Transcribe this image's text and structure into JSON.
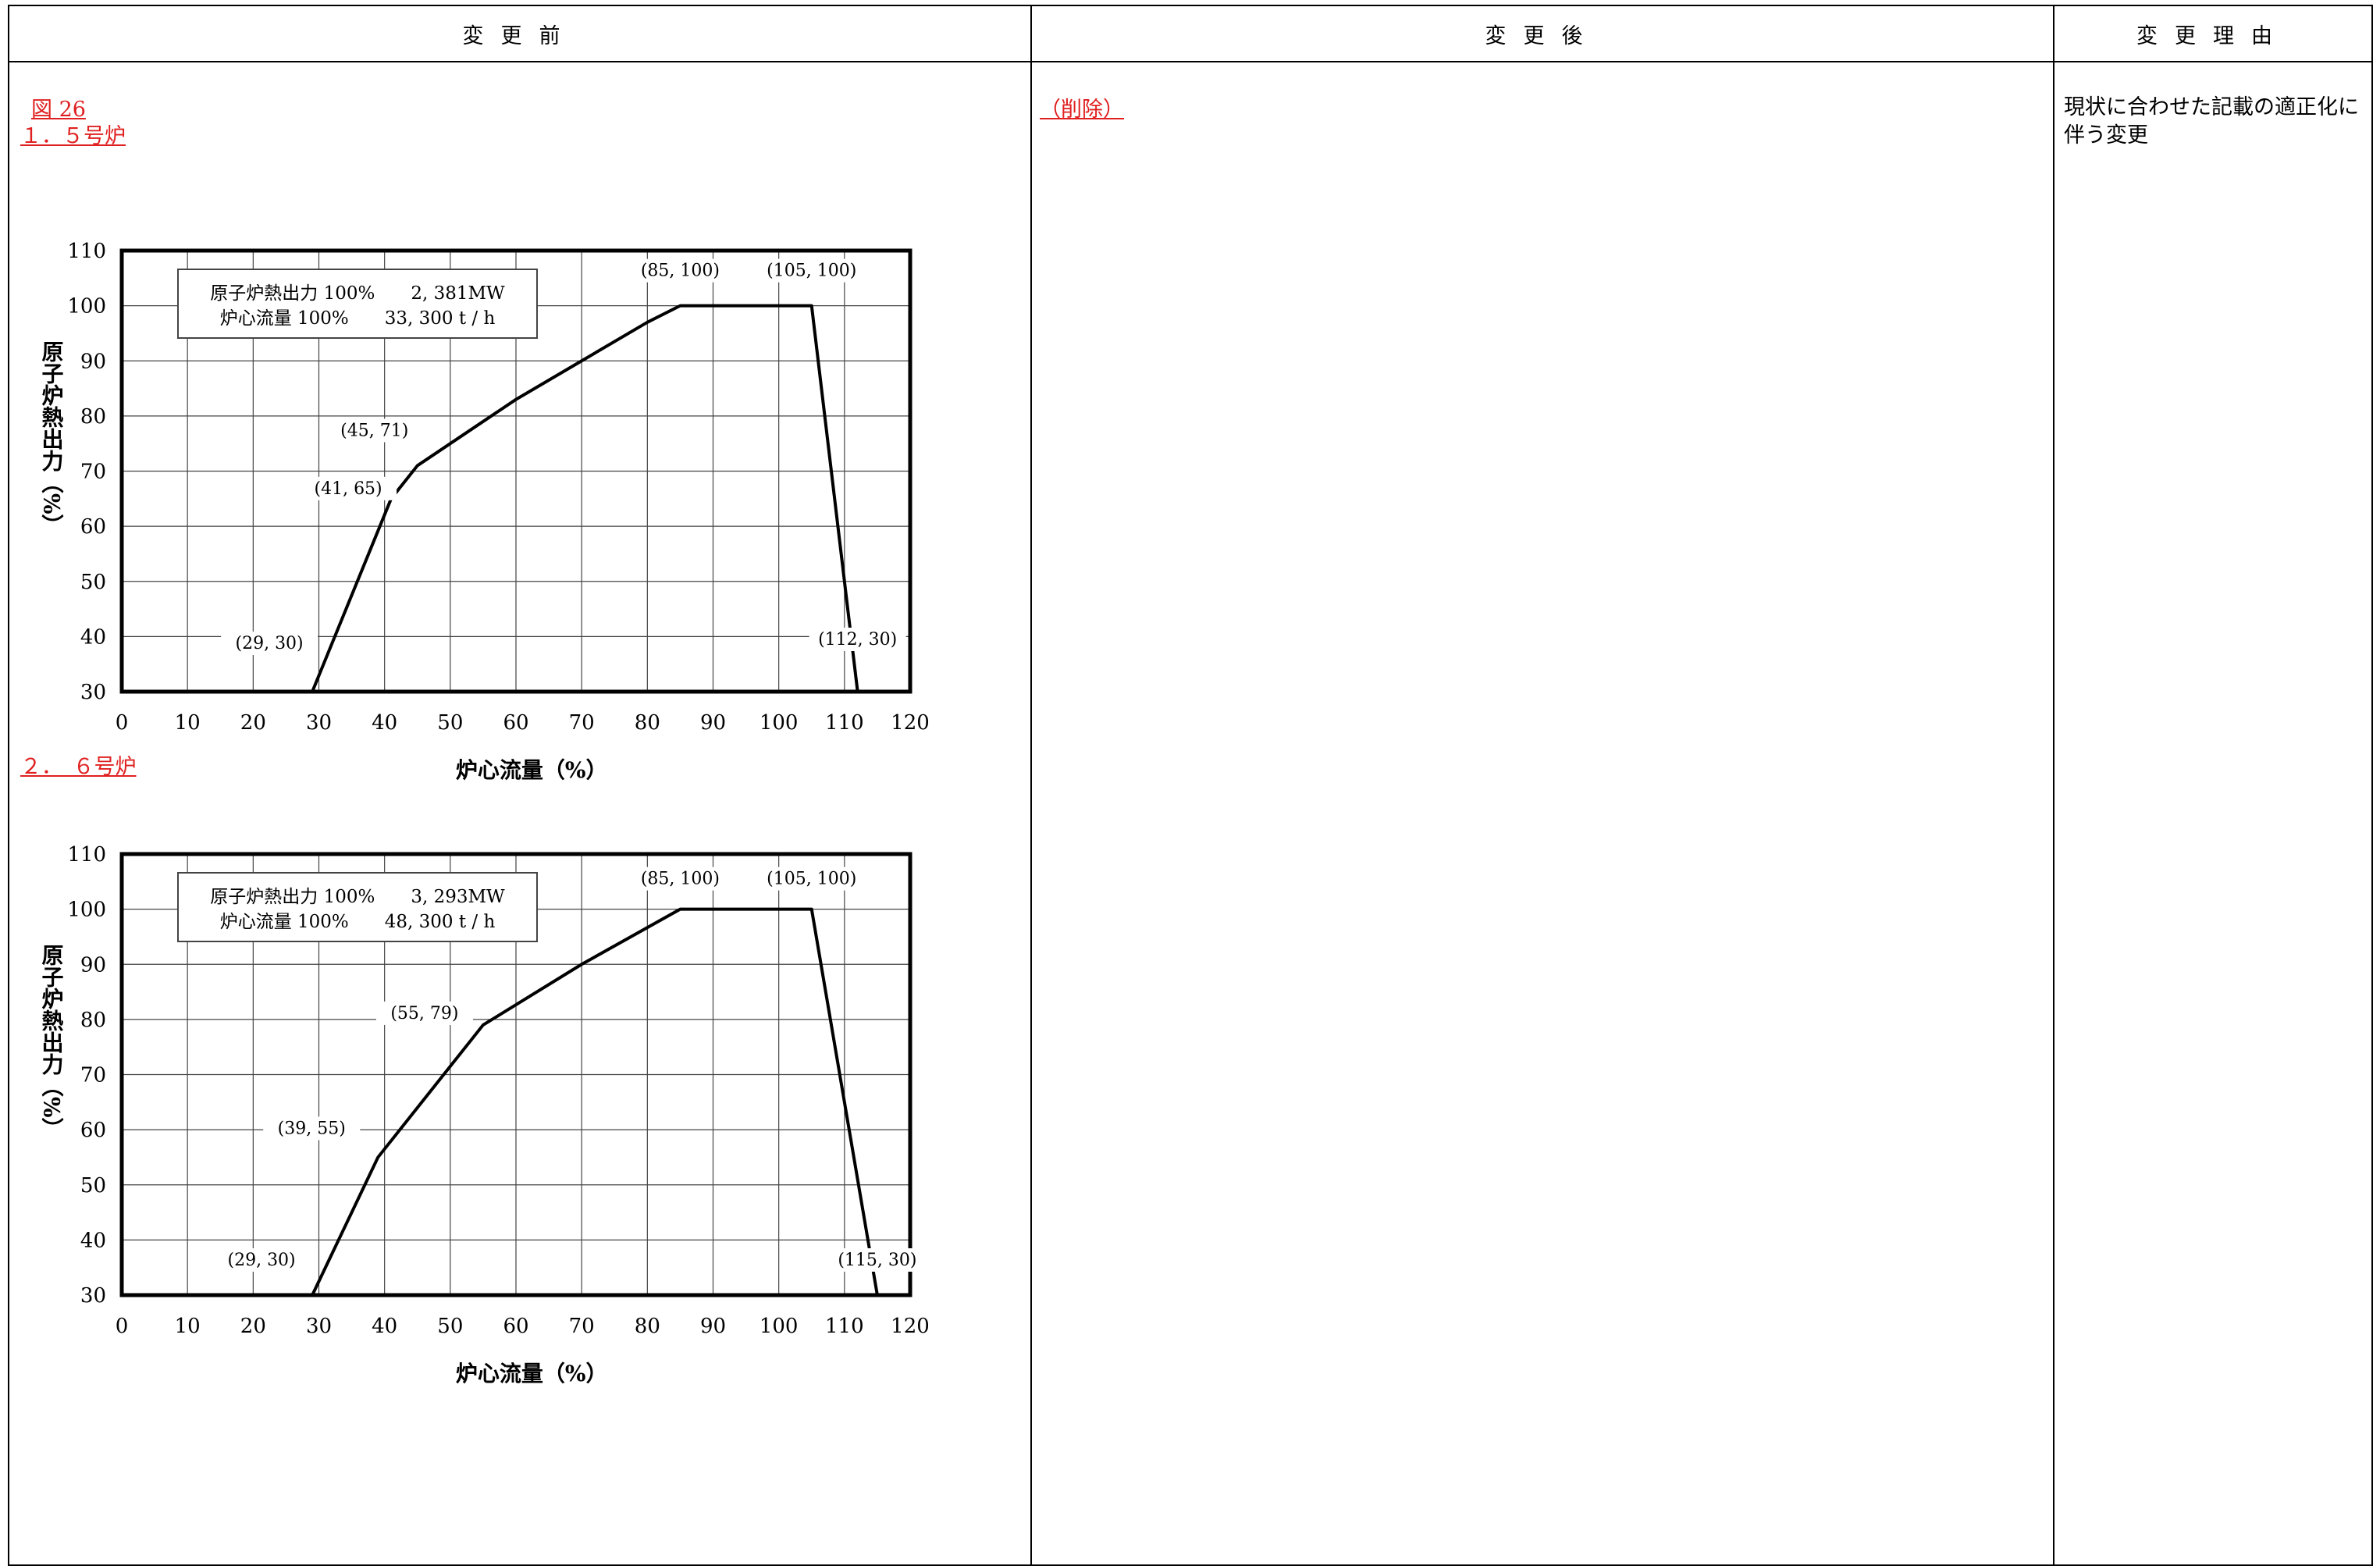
{
  "headers": {
    "before": "変更前",
    "after": "変更後",
    "reason": "変更理由"
  },
  "before": {
    "figure_label": "図 26",
    "section1": "１．５号炉",
    "section2": "２．　６号炉"
  },
  "after": {
    "text": "（削除）"
  },
  "reason": {
    "text": "現状に合わせた記載の適正化に伴う変更"
  },
  "chart_data": [
    {
      "type": "line",
      "xlabel": "炉心流量（%）",
      "ylabel": "原子炉熱出力（%）",
      "xlim": [
        0,
        120
      ],
      "ylim": [
        30,
        110
      ],
      "xticks": [
        0,
        10,
        20,
        30,
        40,
        50,
        60,
        70,
        80,
        90,
        100,
        110,
        120
      ],
      "yticks": [
        30,
        40,
        50,
        60,
        70,
        80,
        90,
        100,
        110
      ],
      "grid": true,
      "info_box": [
        "原子炉熱出力 100%　　2, 381MW",
        "炉心流量 100%　　33, 300 t / h"
      ],
      "series": [
        {
          "x": [
            29,
            41,
            45,
            50,
            60,
            70,
            80,
            85,
            105,
            112
          ],
          "y": [
            30,
            65,
            71,
            75,
            83,
            90,
            97,
            100,
            100,
            30
          ]
        }
      ],
      "annotations": [
        {
          "text": "(85, 100)",
          "x": 85,
          "y": 100
        },
        {
          "text": "(105, 100)",
          "x": 105,
          "y": 100
        },
        {
          "text": "(45, 71)",
          "x": 45,
          "y": 71
        },
        {
          "text": "(41, 65)",
          "x": 41,
          "y": 65
        },
        {
          "text": "(29, 30)",
          "x": 29,
          "y": 30
        },
        {
          "text": "(112, 30)",
          "x": 112,
          "y": 30
        }
      ]
    },
    {
      "type": "line",
      "xlabel": "炉心流量（%）",
      "ylabel": "原子炉熱出力（%）",
      "xlim": [
        0,
        120
      ],
      "ylim": [
        30,
        110
      ],
      "xticks": [
        0,
        10,
        20,
        30,
        40,
        50,
        60,
        70,
        80,
        90,
        100,
        110,
        120
      ],
      "yticks": [
        30,
        40,
        50,
        60,
        70,
        80,
        90,
        100,
        110
      ],
      "grid": true,
      "info_box": [
        "原子炉熱出力 100%　　3, 293MW",
        "炉心流量 100%　　48, 300 t / h"
      ],
      "series": [
        {
          "x": [
            29,
            39,
            55,
            70,
            85,
            105,
            115
          ],
          "y": [
            30,
            55,
            79,
            90,
            100,
            100,
            30
          ]
        }
      ],
      "annotations": [
        {
          "text": "(85, 100)",
          "x": 85,
          "y": 100
        },
        {
          "text": "(105, 100)",
          "x": 105,
          "y": 100
        },
        {
          "text": "(55, 79)",
          "x": 55,
          "y": 79
        },
        {
          "text": "(39, 55)",
          "x": 39,
          "y": 55
        },
        {
          "text": "(29, 30)",
          "x": 29,
          "y": 30
        },
        {
          "text": "(115, 30)",
          "x": 115,
          "y": 30
        }
      ]
    }
  ]
}
